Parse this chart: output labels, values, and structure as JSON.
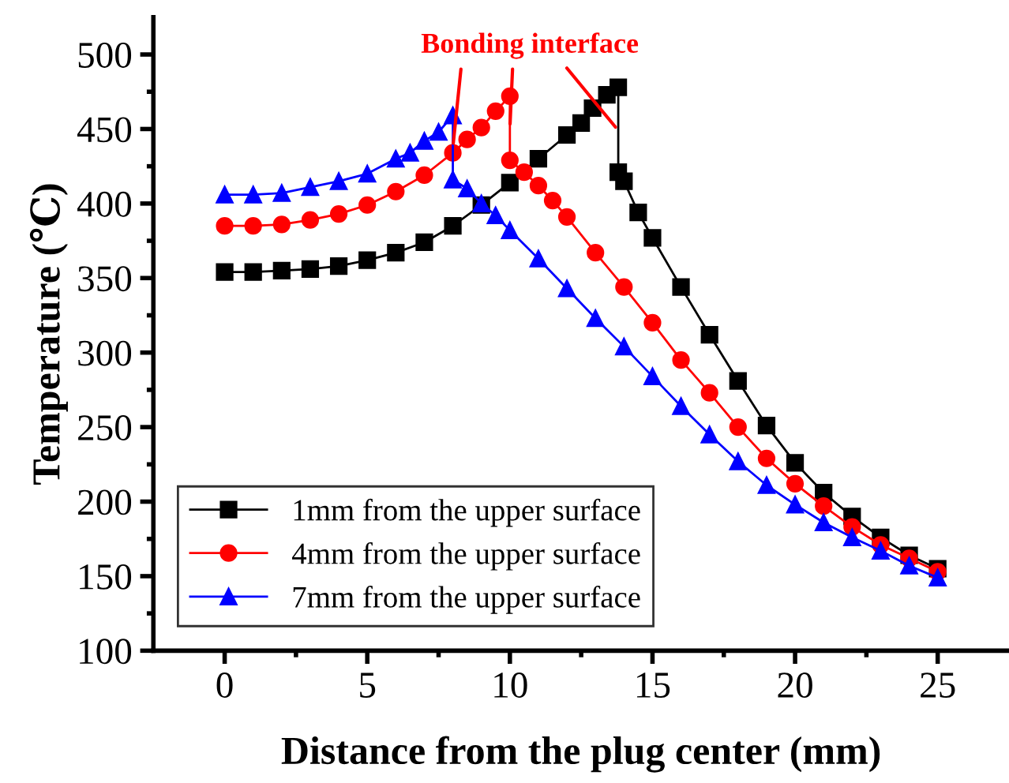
{
  "chart_data": {
    "type": "line",
    "xlabel": "Distance from the plug center (mm)",
    "ylabel": "Temperature (℃)",
    "xlim": [
      -2.5,
      27.5
    ],
    "xticks": [
      0,
      5,
      10,
      15,
      20,
      25
    ],
    "ylim": [
      100,
      525
    ],
    "yticks": [
      100,
      150,
      200,
      250,
      300,
      350,
      400,
      450,
      500
    ],
    "grid": false,
    "legend": "bottom left",
    "annotations": [
      {
        "text": "Bonding interface",
        "x": 13.8,
        "y": 449
      }
    ],
    "series": [
      {
        "name": "1mm from the upper surface",
        "color": "#000000",
        "marker": "square",
        "x": [
          0,
          1,
          2,
          3,
          4,
          5,
          6,
          7,
          8,
          9,
          10,
          11,
          12,
          12.5,
          12.9,
          13.4,
          13.8,
          13.8,
          14,
          14.5,
          15,
          16,
          17,
          18,
          19,
          20,
          21,
          22,
          23,
          24,
          25
        ],
        "values": [
          354,
          354,
          355,
          356,
          358,
          362,
          367,
          374,
          385,
          399,
          414,
          430,
          446,
          454,
          464,
          473,
          478,
          421,
          415,
          394,
          377,
          344,
          312,
          281,
          251,
          226,
          206,
          190,
          176,
          164,
          155
        ]
      },
      {
        "name": "4mm from the upper surface",
        "color": "#ff0000",
        "marker": "circle",
        "x": [
          0,
          1,
          2,
          3,
          4,
          5,
          6,
          7,
          8,
          8.5,
          9,
          9.5,
          10,
          10,
          10.5,
          11,
          11.5,
          12,
          13,
          14,
          15,
          16,
          17,
          18,
          19,
          20,
          21,
          22,
          23,
          24,
          25
        ],
        "values": [
          385,
          385,
          386,
          389,
          393,
          399,
          408,
          419,
          434,
          443,
          451,
          462,
          472,
          429,
          421,
          412,
          402,
          391,
          367,
          344,
          320,
          295,
          273,
          250,
          229,
          212,
          197,
          183,
          171,
          162,
          153
        ]
      },
      {
        "name": "7mm from the upper surface",
        "color": "#0000ff",
        "marker": "triangle",
        "x": [
          0,
          1,
          2,
          3,
          4,
          5,
          6,
          6.5,
          7,
          7.5,
          8,
          8,
          8.5,
          9,
          9.5,
          10,
          11,
          12,
          13,
          14,
          15,
          16,
          17,
          18,
          19,
          20,
          21,
          22,
          23,
          24,
          25
        ],
        "values": [
          406,
          406,
          407,
          411,
          415,
          420,
          430,
          434,
          442,
          448,
          459,
          416,
          410,
          400,
          392,
          382,
          363,
          343,
          323,
          304,
          284,
          264,
          245,
          227,
          211,
          198,
          186,
          176,
          167,
          157,
          149
        ]
      }
    ]
  }
}
